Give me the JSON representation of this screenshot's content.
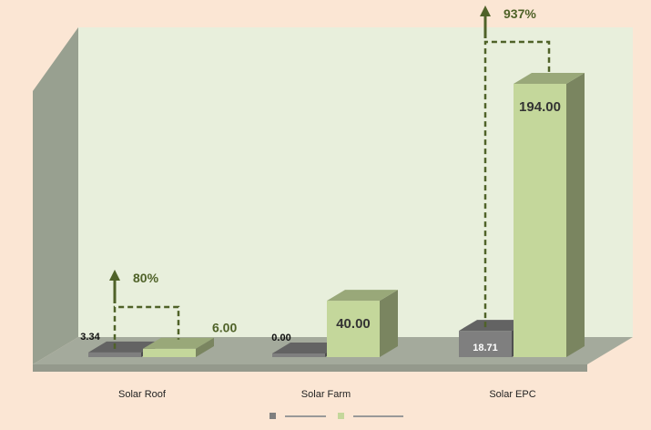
{
  "chart_data": {
    "type": "bar",
    "categories": [
      "Solar Roof",
      "Solar Farm",
      "Solar EPC"
    ],
    "series": [
      {
        "name": "",
        "values": [
          3.34,
          0.0,
          18.71
        ],
        "labels": [
          "3.34",
          "0.00",
          "18.71"
        ],
        "color": "#7f7f7f"
      },
      {
        "name": "",
        "values": [
          6.0,
          40.0,
          194.0
        ],
        "labels": [
          "6.00",
          "40.00",
          "194.00"
        ],
        "color": "#c4d79b"
      }
    ],
    "annotations": [
      {
        "category": "Solar Roof",
        "text": "80%"
      },
      {
        "category": "Solar EPC",
        "text": "937%"
      }
    ],
    "legend_position": "bottom",
    "legend_legible": false,
    "ylim": [
      0,
      200
    ],
    "grid": false,
    "colors": {
      "background": "#fbe6d4",
      "plot_back_wall": "#e8efdc",
      "side_wall": "#98a090",
      "floor": "#a4aa9c",
      "annotation": "#4f6228"
    }
  }
}
